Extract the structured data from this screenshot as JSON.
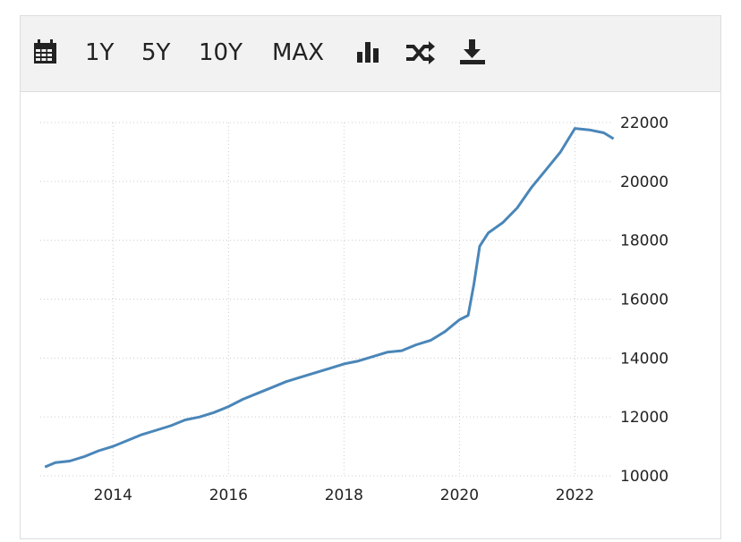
{
  "toolbar": {
    "buttons": [
      "1Y",
      "5Y",
      "10Y",
      "MAX"
    ]
  },
  "chart_data": {
    "type": "line",
    "x": [
      2012.82,
      2013.0,
      2013.25,
      2013.5,
      2013.75,
      2014.0,
      2014.25,
      2014.5,
      2014.75,
      2015.0,
      2015.25,
      2015.5,
      2015.75,
      2016.0,
      2016.25,
      2016.5,
      2016.75,
      2017.0,
      2017.25,
      2017.5,
      2017.75,
      2018.0,
      2018.25,
      2018.5,
      2018.75,
      2019.0,
      2019.25,
      2019.5,
      2019.75,
      2020.0,
      2020.15,
      2020.25,
      2020.35,
      2020.5,
      2020.75,
      2021.0,
      2021.25,
      2021.5,
      2021.75,
      2022.0,
      2022.25,
      2022.5,
      2022.67
    ],
    "values": [
      10300,
      10450,
      10500,
      10650,
      10850,
      11000,
      11200,
      11400,
      11550,
      11700,
      11900,
      12000,
      12150,
      12350,
      12600,
      12800,
      13000,
      13200,
      13350,
      13500,
      13650,
      13800,
      13900,
      14050,
      14200,
      14250,
      14450,
      14600,
      14900,
      15300,
      15450,
      16500,
      17800,
      18250,
      18600,
      19100,
      19800,
      20400,
      21000,
      21800,
      21750,
      21650,
      21450
    ],
    "color": "#4a86b8",
    "xlim": [
      2012.74,
      2022.66
    ],
    "xticks": [
      2014,
      2016,
      2018,
      2020,
      2022
    ],
    "ylim": [
      10000,
      22000
    ],
    "yticks": [
      10000,
      12000,
      14000,
      16000,
      18000,
      20000,
      22000
    ],
    "grid": true
  }
}
